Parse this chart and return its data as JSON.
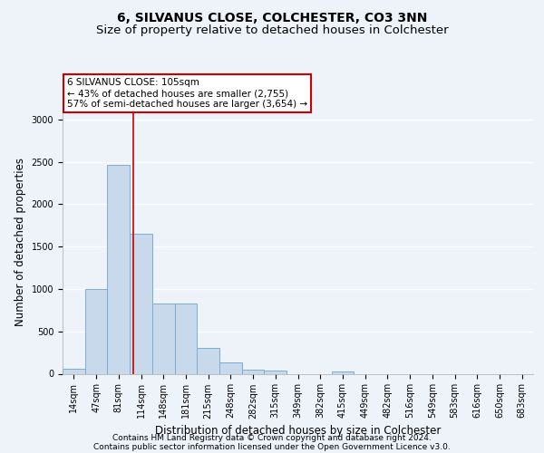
{
  "title": "6, SILVANUS CLOSE, COLCHESTER, CO3 3NN",
  "subtitle": "Size of property relative to detached houses in Colchester",
  "xlabel": "Distribution of detached houses by size in Colchester",
  "ylabel": "Number of detached properties",
  "bar_labels": [
    "14sqm",
    "47sqm",
    "81sqm",
    "114sqm",
    "148sqm",
    "181sqm",
    "215sqm",
    "248sqm",
    "282sqm",
    "315sqm",
    "349sqm",
    "382sqm",
    "415sqm",
    "449sqm",
    "482sqm",
    "516sqm",
    "549sqm",
    "583sqm",
    "616sqm",
    "650sqm",
    "683sqm"
  ],
  "bar_values": [
    60,
    1000,
    2460,
    1650,
    830,
    830,
    300,
    130,
    50,
    40,
    0,
    0,
    30,
    0,
    0,
    0,
    0,
    0,
    0,
    0,
    0
  ],
  "bar_color": "#c9d9ec",
  "bar_edge_color": "#7aadd4",
  "ylim": [
    0,
    3100
  ],
  "yticks": [
    0,
    500,
    1000,
    1500,
    2000,
    2500,
    3000
  ],
  "vline_x_index": 2.67,
  "annotation_line1": "6 SILVANUS CLOSE: 105sqm",
  "annotation_line2": "← 43% of detached houses are smaller (2,755)",
  "annotation_line3": "57% of semi-detached houses are larger (3,654) →",
  "annotation_box_color": "#cc0000",
  "footer_line1": "Contains HM Land Registry data © Crown copyright and database right 2024.",
  "footer_line2": "Contains public sector information licensed under the Open Government Licence v3.0.",
  "bg_color": "#eef2f9",
  "grid_color": "#ffffff",
  "title_fontsize": 10,
  "subtitle_fontsize": 9.5,
  "axis_label_fontsize": 8.5,
  "tick_fontsize": 7,
  "annotation_fontsize": 7.5,
  "footer_fontsize": 6.5
}
